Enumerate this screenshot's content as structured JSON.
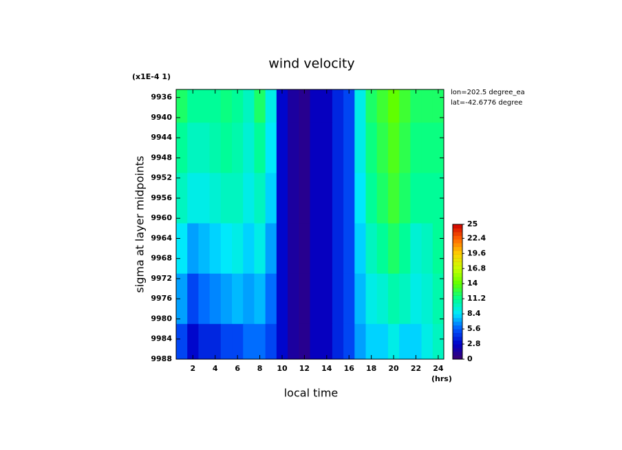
{
  "chart_data": {
    "type": "contour",
    "title": "wind velocity",
    "x_label": "local time",
    "x_unit": "(hrs)",
    "y_label": "sigma at layer midpoints",
    "y_multiplier": "(x1E-4 1)",
    "annotations": [
      "lon=202.5 degree_ea",
      "lat=-42.6776 degree"
    ],
    "x": [
      1,
      2,
      3,
      4,
      5,
      6,
      7,
      8,
      9,
      10,
      11,
      12,
      13,
      14,
      15,
      16,
      17,
      18,
      19,
      20,
      21,
      22,
      23,
      24
    ],
    "y": [
      9936,
      9946,
      9956,
      9966,
      9976,
      9986
    ],
    "z": [
      [
        12,
        11,
        11,
        11,
        11.5,
        11,
        10,
        12,
        9,
        3,
        1.5,
        1,
        2.5,
        2.5,
        4,
        5,
        9,
        12,
        13,
        14,
        13,
        12,
        12,
        12
      ],
      [
        11,
        10,
        10,
        10.5,
        11,
        10.5,
        9.5,
        11,
        8.5,
        3,
        1.5,
        1,
        2.5,
        2.5,
        4,
        5,
        9,
        11.5,
        12.5,
        13.5,
        12.5,
        11.5,
        11.5,
        11.5
      ],
      [
        10,
        9,
        9,
        9.5,
        10,
        10,
        9,
        10,
        8,
        3,
        1.5,
        1,
        2.5,
        2.5,
        4,
        5,
        8.5,
        11,
        12,
        13,
        12,
        11,
        11,
        11
      ],
      [
        8.5,
        7,
        7.5,
        8,
        8.5,
        9,
        8,
        9,
        7,
        3,
        1.5,
        1,
        2.5,
        2.5,
        4,
        5,
        8,
        10,
        11,
        12,
        11,
        9.5,
        10,
        11
      ],
      [
        7,
        5,
        6,
        6.5,
        7,
        7.5,
        7,
        7.5,
        6,
        3,
        1.5,
        1,
        2.5,
        2.5,
        4,
        5,
        7.5,
        9,
        9.5,
        10.5,
        10,
        9,
        9.5,
        10.5
      ],
      [
        5,
        3,
        4,
        4,
        5,
        5,
        6,
        6,
        5,
        3,
        1.5,
        1,
        2.5,
        2.5,
        4,
        5,
        7,
        8,
        8,
        9,
        8,
        8,
        9,
        10
      ]
    ],
    "xlim": [
      0.5,
      24.5
    ],
    "xticks": [
      2,
      4,
      6,
      8,
      10,
      12,
      14,
      16,
      18,
      20,
      22,
      24
    ],
    "ylim": [
      9988,
      9934.4
    ],
    "yticks": [
      9936,
      9940,
      9944,
      9948,
      9952,
      9956,
      9960,
      9964,
      9968,
      9972,
      9976,
      9980,
      9984,
      9988
    ],
    "colorbar": {
      "ticks": [
        0,
        2.8,
        5.6,
        8.4,
        11.2,
        14,
        16.8,
        19.6,
        22.4,
        25
      ],
      "colors": [
        "#3c0070",
        "#0000c8",
        "#0058ff",
        "#00e8ff",
        "#00ff90",
        "#60ff00",
        "#c8ff00",
        "#ffd000",
        "#ff6000",
        "#d00000"
      ]
    }
  }
}
